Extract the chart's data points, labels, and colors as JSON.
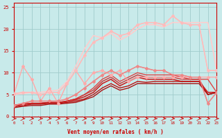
{
  "background_color": "#c8eaea",
  "grid_color": "#a0cccc",
  "xlabel": "Vent moyen/en rafales ( km/h )",
  "x_ticks": [
    0,
    1,
    2,
    3,
    4,
    5,
    6,
    7,
    8,
    9,
    10,
    11,
    12,
    13,
    14,
    15,
    16,
    17,
    18,
    19,
    20,
    21,
    22,
    23
  ],
  "ylim": [
    0,
    26
  ],
  "xlim": [
    0,
    23
  ],
  "yticks": [
    0,
    5,
    10,
    15,
    20,
    25
  ],
  "lines": [
    {
      "color": "#ffaaaa",
      "lw": 0.8,
      "marker": null,
      "data_x": [
        0,
        1,
        2,
        3,
        4,
        5,
        6,
        7,
        8,
        9,
        10,
        11,
        12,
        13,
        14,
        15,
        16,
        17,
        18,
        19,
        20,
        21,
        22,
        23
      ],
      "data_y": [
        5.2,
        11.5,
        8.5,
        3.5,
        6.5,
        3.0,
        7.5,
        10.5,
        7.5,
        10.0,
        10.5,
        9.5,
        10.5,
        8.0,
        9.0,
        9.0,
        9.0,
        9.0,
        9.0,
        9.0,
        9.0,
        9.0,
        9.0,
        9.0
      ]
    },
    {
      "color": "#ffaaaa",
      "lw": 0.8,
      "marker": "D",
      "markersize": 2,
      "data_x": [
        0,
        1,
        2,
        3,
        4,
        5,
        6,
        7,
        8,
        9,
        10,
        11,
        12,
        13,
        14,
        15,
        16,
        17,
        18,
        19,
        20,
        21,
        22,
        23
      ],
      "data_y": [
        5.2,
        11.5,
        8.5,
        3.5,
        6.5,
        3.0,
        7.5,
        10.5,
        7.5,
        10.0,
        10.5,
        9.5,
        10.5,
        8.0,
        9.0,
        9.0,
        9.0,
        9.0,
        9.0,
        9.0,
        9.0,
        9.0,
        9.0,
        9.0
      ]
    },
    {
      "color": "#ffbbbb",
      "lw": 1.0,
      "marker": null,
      "data_x": [
        0,
        1,
        2,
        3,
        4,
        5,
        6,
        7,
        8,
        9,
        10,
        11,
        12,
        13,
        14,
        15,
        16,
        17,
        18,
        19,
        20,
        21,
        22,
        23
      ],
      "data_y": [
        5.2,
        5.5,
        5.5,
        5.0,
        5.5,
        5.5,
        7.5,
        10.5,
        14.0,
        17.0,
        18.0,
        19.5,
        18.5,
        19.0,
        21.0,
        21.5,
        21.5,
        21.0,
        23.0,
        21.5,
        21.0,
        21.0,
        10.5,
        10.5
      ]
    },
    {
      "color": "#ffbbbb",
      "lw": 1.0,
      "marker": "D",
      "markersize": 2,
      "data_x": [
        0,
        1,
        2,
        3,
        4,
        5,
        6,
        7,
        8,
        9,
        10,
        11,
        12,
        13,
        14,
        15,
        16,
        17,
        18,
        19,
        20,
        21,
        22,
        23
      ],
      "data_y": [
        5.2,
        5.5,
        5.5,
        5.0,
        5.5,
        5.5,
        7.5,
        10.5,
        14.0,
        17.0,
        18.0,
        19.5,
        18.5,
        19.0,
        21.0,
        21.5,
        21.5,
        21.0,
        23.0,
        21.5,
        21.0,
        21.0,
        10.5,
        10.5
      ]
    },
    {
      "color": "#ffcccc",
      "lw": 1.2,
      "marker": null,
      "data_x": [
        0,
        1,
        2,
        3,
        4,
        5,
        6,
        7,
        8,
        9,
        10,
        11,
        12,
        13,
        14,
        15,
        16,
        17,
        18,
        19,
        20,
        21,
        22,
        23
      ],
      "data_y": [
        5.0,
        5.2,
        5.5,
        5.5,
        5.8,
        6.0,
        8.0,
        11.5,
        15.5,
        18.5,
        18.0,
        19.0,
        17.5,
        18.5,
        20.0,
        21.0,
        21.0,
        20.5,
        21.5,
        21.5,
        21.5,
        21.5,
        21.5,
        10.5
      ]
    },
    {
      "color": "#ee8888",
      "lw": 1.0,
      "marker": null,
      "data_x": [
        0,
        1,
        2,
        3,
        4,
        5,
        6,
        7,
        8,
        9,
        10,
        11,
        12,
        13,
        14,
        15,
        16,
        17,
        18,
        19,
        20,
        21,
        22,
        23
      ],
      "data_y": [
        2.5,
        3.0,
        3.5,
        3.5,
        3.5,
        3.5,
        4.0,
        5.0,
        6.5,
        8.0,
        9.5,
        10.5,
        9.5,
        10.5,
        11.5,
        11.0,
        10.5,
        10.5,
        9.5,
        9.5,
        9.0,
        9.0,
        3.0,
        5.5
      ]
    },
    {
      "color": "#ee8888",
      "lw": 1.0,
      "marker": "D",
      "markersize": 2,
      "data_x": [
        0,
        1,
        2,
        3,
        4,
        5,
        6,
        7,
        8,
        9,
        10,
        11,
        12,
        13,
        14,
        15,
        16,
        17,
        18,
        19,
        20,
        21,
        22,
        23
      ],
      "data_y": [
        2.5,
        3.0,
        3.5,
        3.5,
        3.5,
        3.5,
        4.0,
        5.0,
        6.5,
        8.0,
        9.5,
        10.5,
        9.5,
        10.5,
        11.5,
        11.0,
        10.5,
        10.5,
        9.5,
        9.5,
        9.0,
        9.0,
        3.0,
        5.5
      ]
    },
    {
      "color": "#dd4444",
      "lw": 1.0,
      "marker": null,
      "data_x": [
        0,
        1,
        2,
        3,
        4,
        5,
        6,
        7,
        8,
        9,
        10,
        11,
        12,
        13,
        14,
        15,
        16,
        17,
        18,
        19,
        20,
        21,
        22,
        23
      ],
      "data_y": [
        2.5,
        2.8,
        3.0,
        3.0,
        3.2,
        3.2,
        3.5,
        4.0,
        5.0,
        6.5,
        8.5,
        9.5,
        8.0,
        9.0,
        10.0,
        9.5,
        9.5,
        9.5,
        9.5,
        9.0,
        8.5,
        8.5,
        8.5,
        5.5
      ]
    },
    {
      "color": "#cc3333",
      "lw": 1.0,
      "marker": null,
      "data_x": [
        0,
        1,
        2,
        3,
        4,
        5,
        6,
        7,
        8,
        9,
        10,
        11,
        12,
        13,
        14,
        15,
        16,
        17,
        18,
        19,
        20,
        21,
        22,
        23
      ],
      "data_y": [
        2.5,
        2.8,
        3.0,
        3.0,
        3.2,
        3.2,
        3.5,
        4.0,
        5.0,
        6.0,
        8.0,
        9.0,
        7.5,
        8.5,
        9.5,
        9.0,
        9.0,
        9.0,
        9.0,
        8.5,
        8.5,
        8.5,
        5.0,
        5.5
      ]
    },
    {
      "color": "#cc2222",
      "lw": 1.2,
      "marker": null,
      "data_x": [
        0,
        1,
        2,
        3,
        4,
        5,
        6,
        7,
        8,
        9,
        10,
        11,
        12,
        13,
        14,
        15,
        16,
        17,
        18,
        19,
        20,
        21,
        22,
        23
      ],
      "data_y": [
        2.5,
        2.8,
        3.0,
        3.0,
        3.2,
        3.0,
        3.5,
        3.8,
        4.5,
        5.5,
        7.5,
        8.5,
        7.0,
        8.0,
        9.0,
        8.5,
        8.5,
        8.5,
        8.5,
        8.0,
        8.0,
        8.0,
        5.5,
        5.5
      ]
    },
    {
      "color": "#bb1111",
      "lw": 1.0,
      "marker": null,
      "data_x": [
        0,
        1,
        2,
        3,
        4,
        5,
        6,
        7,
        8,
        9,
        10,
        11,
        12,
        13,
        14,
        15,
        16,
        17,
        18,
        19,
        20,
        21,
        22,
        23
      ],
      "data_y": [
        2.2,
        2.5,
        2.8,
        2.8,
        3.0,
        3.0,
        3.2,
        3.5,
        4.0,
        5.0,
        6.5,
        7.5,
        6.5,
        7.0,
        8.0,
        7.8,
        8.0,
        8.0,
        8.0,
        8.0,
        8.0,
        8.0,
        5.0,
        5.5
      ]
    },
    {
      "color": "#aa1111",
      "lw": 1.0,
      "marker": null,
      "data_x": [
        0,
        1,
        2,
        3,
        4,
        5,
        6,
        7,
        8,
        9,
        10,
        11,
        12,
        13,
        14,
        15,
        16,
        17,
        18,
        19,
        20,
        21,
        22,
        23
      ],
      "data_y": [
        2.0,
        2.3,
        2.5,
        2.5,
        2.8,
        2.8,
        3.0,
        3.2,
        3.8,
        4.5,
        6.0,
        7.0,
        6.0,
        6.5,
        7.5,
        7.5,
        7.5,
        7.5,
        7.5,
        7.5,
        7.5,
        7.5,
        5.0,
        5.5
      ]
    }
  ],
  "arrow_color": "#cc3333",
  "tick_color": "#cc0000",
  "label_color": "#cc0000",
  "axis_color": "#cc0000",
  "spine_color": "#cc0000"
}
